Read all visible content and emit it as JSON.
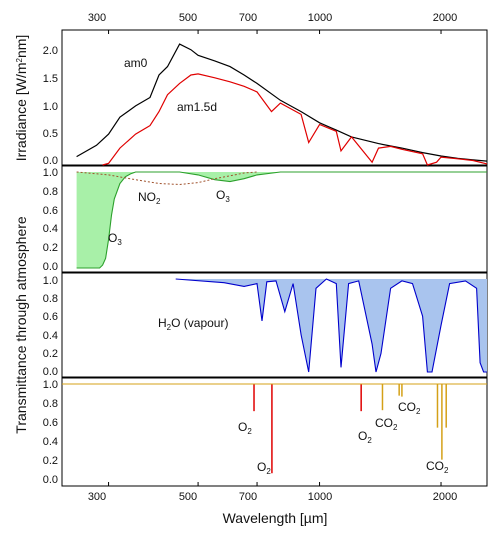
{
  "chart_data": [
    {
      "type": "line",
      "panel": "irradiance",
      "ylabel": "Irradiance [W/m²nm]",
      "ylim": [
        0,
        2.4
      ],
      "yticks": [
        "0.0",
        "0.5",
        "1.0",
        "1.5",
        "2.0"
      ],
      "x_scale": "log",
      "xlim": [
        230,
        2600
      ],
      "top_ticks": [
        "300",
        "500",
        "700",
        "1000",
        "2000"
      ],
      "series": [
        {
          "name": "am0",
          "color": "#000000",
          "x": [
            250,
            280,
            300,
            320,
            350,
            380,
            400,
            420,
            450,
            480,
            500,
            550,
            600,
            650,
            700,
            800,
            900,
            1000,
            1100,
            1200,
            1400,
            1600,
            1800,
            2000,
            2200,
            2400,
            2600
          ],
          "y": [
            0.15,
            0.35,
            0.55,
            0.85,
            1.05,
            1.2,
            1.6,
            1.75,
            2.15,
            2.05,
            1.95,
            1.85,
            1.75,
            1.6,
            1.45,
            1.15,
            0.95,
            0.75,
            0.62,
            0.5,
            0.38,
            0.3,
            0.22,
            0.16,
            0.12,
            0.09,
            0.07
          ]
        },
        {
          "name": "am1.5d",
          "color": "#e00000",
          "x": [
            290,
            300,
            320,
            350,
            380,
            400,
            420,
            450,
            480,
            500,
            550,
            600,
            650,
            700,
            760,
            800,
            900,
            940,
            1000,
            1100,
            1130,
            1200,
            1350,
            1400,
            1500,
            1600,
            1800,
            1850,
            1950,
            2000,
            2200,
            2400,
            2600
          ],
          "y": [
            0.0,
            0.03,
            0.3,
            0.55,
            0.7,
            0.95,
            1.25,
            1.45,
            1.6,
            1.62,
            1.55,
            1.48,
            1.4,
            1.3,
            0.95,
            1.1,
            0.9,
            0.4,
            0.72,
            0.6,
            0.25,
            0.5,
            0.05,
            0.3,
            0.33,
            0.28,
            0.2,
            0.0,
            0.05,
            0.14,
            0.11,
            0.08,
            0.02
          ]
        }
      ],
      "annotations": [
        "am0",
        "am1.5d"
      ]
    },
    {
      "type": "area",
      "panel": "ozone-no2",
      "ylim": [
        0,
        1
      ],
      "yticks": [
        "0.0",
        "0.2",
        "0.4",
        "0.6",
        "0.8",
        "1.0"
      ],
      "series": [
        {
          "name": "O3",
          "color": "#2ca02c",
          "fill": "#a8f0a8",
          "x": [
            250,
            270,
            285,
            290,
            295,
            300,
            305,
            310,
            320,
            330,
            340,
            350,
            450,
            500,
            550,
            600,
            650,
            700,
            800,
            2600
          ],
          "y": [
            0.0,
            0.0,
            0.0,
            0.03,
            0.1,
            0.3,
            0.55,
            0.72,
            0.88,
            0.95,
            0.98,
            1.0,
            1.0,
            0.97,
            0.92,
            0.9,
            0.93,
            0.97,
            1.0,
            1.0
          ]
        },
        {
          "name": "NO2",
          "color": "#a0522d",
          "x": [
            250,
            300,
            350,
            400,
            450,
            500,
            550,
            600,
            650,
            700
          ],
          "y": [
            1.0,
            0.97,
            0.92,
            0.88,
            0.87,
            0.89,
            0.93,
            0.96,
            0.99,
            1.0
          ]
        }
      ],
      "annotations": [
        "NO2",
        "O3",
        "O3"
      ]
    },
    {
      "type": "area",
      "panel": "water-vapour",
      "ylim": [
        0,
        1
      ],
      "yticks": [
        "0.0",
        "0.2",
        "0.4",
        "0.6",
        "0.8",
        "1.0"
      ],
      "series": [
        {
          "name": "H2O (vapour)",
          "color": "#0000cc",
          "fill": "#a9c4ee",
          "x": [
            440,
            580,
            650,
            700,
            720,
            740,
            780,
            820,
            860,
            900,
            940,
            980,
            1040,
            1100,
            1130,
            1180,
            1250,
            1350,
            1380,
            1420,
            1500,
            1600,
            1700,
            1800,
            1850,
            1900,
            2000,
            2100,
            2300,
            2450,
            2500,
            2550,
            2600
          ],
          "y": [
            1.0,
            0.96,
            0.92,
            0.95,
            0.55,
            0.97,
            0.98,
            0.65,
            0.95,
            0.4,
            0.0,
            0.9,
            1.0,
            0.95,
            0.05,
            0.95,
            0.98,
            0.3,
            0.0,
            0.2,
            0.9,
            0.98,
            0.95,
            0.6,
            0.0,
            0.0,
            0.5,
            0.95,
            0.98,
            0.9,
            0.1,
            0.0,
            0.0
          ]
        }
      ],
      "annotations": [
        "H2O (vapour)"
      ]
    },
    {
      "type": "area",
      "panel": "o2-co2",
      "ylim": [
        0,
        1
      ],
      "yticks": [
        "0.0",
        "0.2",
        "0.4",
        "0.6",
        "0.8",
        "1.0"
      ],
      "series": [
        {
          "name": "O2",
          "color": "#e00000",
          "lines": [
            {
              "x": 688,
              "min": 0.72
            },
            {
              "x": 762,
              "min": 0.08
            },
            {
              "x": 1268,
              "min": 0.72
            }
          ]
        },
        {
          "name": "CO2",
          "color": "#d4a017",
          "lines": [
            {
              "x": 1432,
              "min": 0.73
            },
            {
              "x": 1575,
              "min": 0.88
            },
            {
              "x": 1600,
              "min": 0.87
            },
            {
              "x": 1960,
              "min": 0.55
            },
            {
              "x": 2010,
              "min": 0.22
            },
            {
              "x": 2060,
              "min": 0.55
            }
          ]
        }
      ],
      "annotations": [
        "O2",
        "O2",
        "O2",
        "CO2",
        "CO2",
        "CO2"
      ]
    }
  ],
  "shared": {
    "xlabel": "Wavelength [µm]",
    "xticks": [
      "300",
      "500",
      "700",
      "1000",
      "2000"
    ],
    "ylabel_lower": "Transmittance through atmosphere"
  }
}
